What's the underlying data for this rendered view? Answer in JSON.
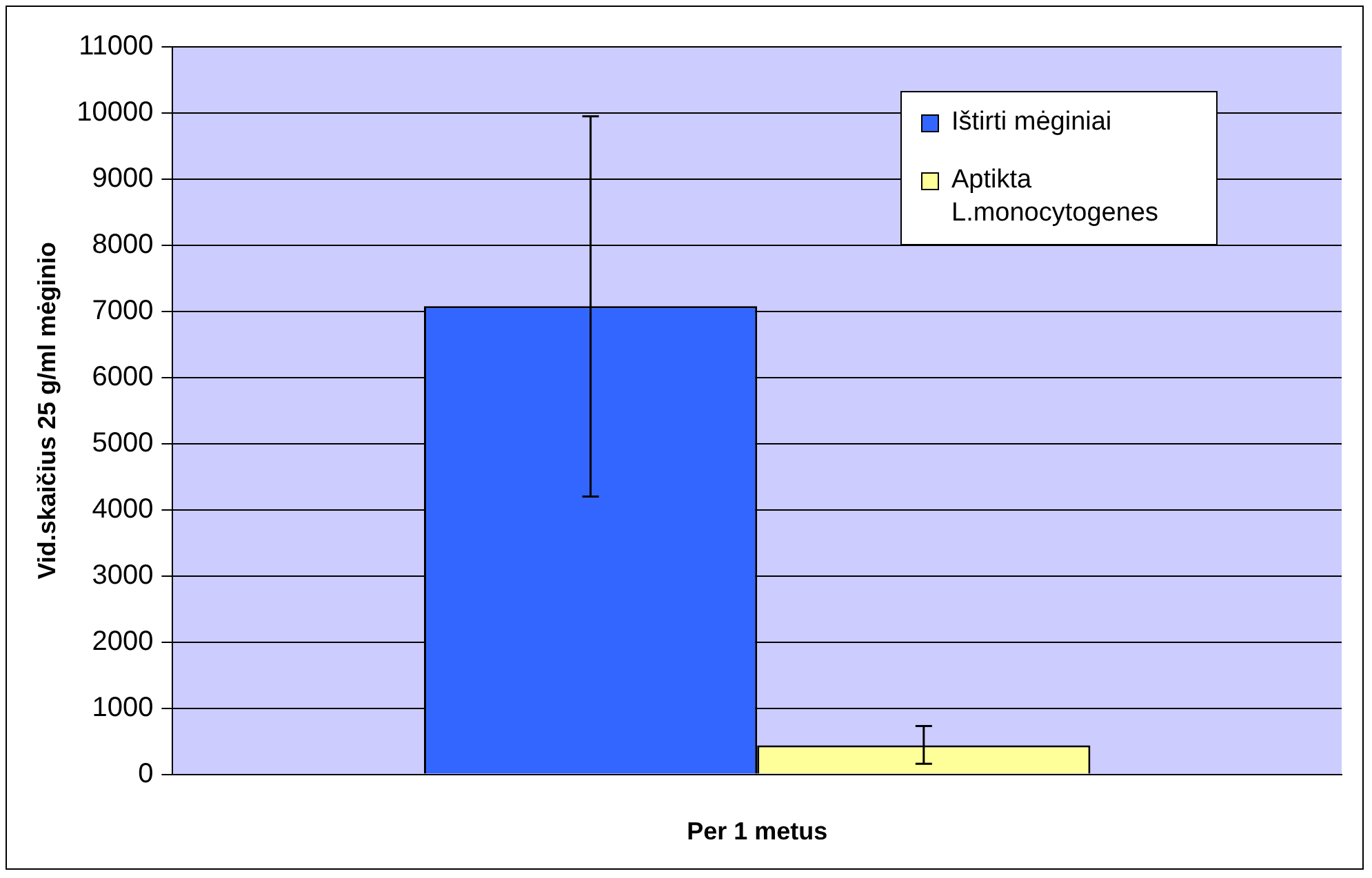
{
  "chart_data": {
    "type": "bar",
    "xlabel": "Per 1 metus",
    "ylabel": "Vid.skaičius 25 g/ml mėginio",
    "categories": [
      null
    ],
    "series": [
      {
        "name": "Ištirti mėginiai",
        "color": "#3366ff",
        "values": [
          7080
        ],
        "errors": [
          [
            4200,
            9950
          ]
        ]
      },
      {
        "name": "Aptikta L.monocytogenes",
        "color": "#ffff99",
        "values": [
          440
        ],
        "errors": [
          [
            160,
            730
          ]
        ]
      }
    ],
    "ylim": [
      0,
      11000
    ],
    "yticks": [
      0,
      1000,
      2000,
      3000,
      4000,
      5000,
      6000,
      7000,
      8000,
      9000,
      10000,
      11000
    ],
    "grid": "y",
    "legend": "top right"
  }
}
